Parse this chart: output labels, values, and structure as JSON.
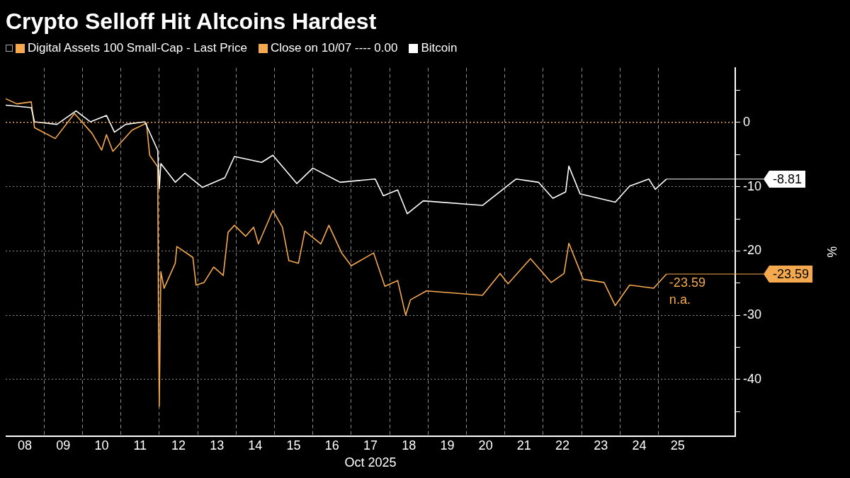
{
  "chart_data": {
    "type": "line",
    "title": "Crypto Selloff Hit Altcoins Hardest",
    "xlabel": "Oct 2025",
    "ylabel": "%",
    "xlim": [
      "2025-10-08",
      "2025-10-27"
    ],
    "xticks": [
      {
        "value": "2025-10-08T12:00",
        "label": "08"
      },
      {
        "value": "2025-10-09",
        "label": null
      },
      {
        "value": "2025-10-09T12:00",
        "label": "09"
      },
      {
        "value": "2025-10-10",
        "label": null
      },
      {
        "value": "2025-10-10T12:00",
        "label": "10"
      },
      {
        "value": "2025-10-11",
        "label": null
      },
      {
        "value": "2025-10-11T12:00",
        "label": "11"
      },
      {
        "value": "2025-10-12",
        "label": null
      },
      {
        "value": "2025-10-12T12:00",
        "label": "12"
      },
      {
        "value": "2025-10-13",
        "label": null
      },
      {
        "value": "2025-10-13T12:00",
        "label": "13"
      },
      {
        "value": "2025-10-14",
        "label": null
      },
      {
        "value": "2025-10-14T12:00",
        "label": "14"
      },
      {
        "value": "2025-10-15",
        "label": null
      },
      {
        "value": "2025-10-15T12:00",
        "label": "15"
      },
      {
        "value": "2025-10-16",
        "label": null
      },
      {
        "value": "2025-10-16T12:00",
        "label": "16"
      },
      {
        "value": "2025-10-17",
        "label": null
      },
      {
        "value": "2025-10-17T12:00",
        "label": "17"
      },
      {
        "value": "2025-10-18",
        "label": null
      },
      {
        "value": "2025-10-18T12:00",
        "label": "18"
      },
      {
        "value": "2025-10-19",
        "label": null
      },
      {
        "value": "2025-10-19T12:00",
        "label": "19"
      },
      {
        "value": "2025-10-20",
        "label": null
      },
      {
        "value": "2025-10-20T12:00",
        "label": "20"
      },
      {
        "value": "2025-10-21",
        "label": null
      },
      {
        "value": "2025-10-21T12:00",
        "label": "21"
      },
      {
        "value": "2025-10-22",
        "label": null
      },
      {
        "value": "2025-10-22T12:00",
        "label": "22"
      },
      {
        "value": "2025-10-23",
        "label": null
      },
      {
        "value": "2025-10-23T12:00",
        "label": "23"
      },
      {
        "value": "2025-10-24",
        "label": null
      },
      {
        "value": "2025-10-24T12:00",
        "label": "24"
      },
      {
        "value": "2025-10-25",
        "label": null
      },
      {
        "value": "2025-10-25T12:00",
        "label": "25"
      }
    ],
    "ylim": [
      -48.8,
      8.5
    ],
    "yticks": [
      {
        "value": 5,
        "label": null
      },
      0,
      {
        "value": -5,
        "label": null
      },
      -10,
      {
        "value": -15,
        "label": null
      },
      -20,
      {
        "value": -25,
        "label": null
      },
      -30,
      {
        "value": -35,
        "label": null
      },
      -40,
      {
        "value": -45,
        "label": null
      }
    ],
    "grid": true,
    "legend": "top left",
    "marker": "none",
    "line_style": "solid",
    "ref_lines": [
      {
        "axis": "y",
        "value": 0,
        "label": "Close on 10/07 ---- 0.00",
        "color": "#f5a94e",
        "line_style": "dotted"
      }
    ],
    "annotations": [
      {
        "text": "-8.81",
        "x": "2025-10-25T05:00",
        "y": -8.81
      },
      {
        "text": "-23.59",
        "x": "2025-10-25T05:00",
        "y": -23.59
      },
      "n.a."
    ],
    "series": [
      {
        "name": "Digital Assets 100 Small-Cap - Last Price",
        "color": "#f5a94e",
        "x": [
          "2025-10-08T00:00",
          "2025-10-08T07:00",
          "2025-10-08T16:00",
          "2025-10-08T18:00",
          "2025-10-09T07:00",
          "2025-10-09T19:00",
          "2025-10-10T06:00",
          "2025-10-10T12:00",
          "2025-10-10T15:00",
          "2025-10-10T19:00",
          "2025-10-11T07:00",
          "2025-10-11T16:00",
          "2025-10-11T18:00",
          "2025-10-11T23:00",
          "2025-10-11T23:30",
          "2025-10-12T00:00",
          "2025-10-12T01:00",
          "2025-10-12T03:00",
          "2025-10-12T10:00",
          "2025-10-12T11:00",
          "2025-10-12T21:00",
          "2025-10-12T23:00",
          "2025-10-13T04:00",
          "2025-10-13T10:00",
          "2025-10-13T16:00",
          "2025-10-13T19:00",
          "2025-10-13T23:00",
          "2025-10-14T06:00",
          "2025-10-14T11:00",
          "2025-10-14T14:00",
          "2025-10-14T23:00",
          "2025-10-15T05:00",
          "2025-10-15T09:00",
          "2025-10-15T15:00",
          "2025-10-15T19:00",
          "2025-10-16T05:00",
          "2025-10-16T10:00",
          "2025-10-16T18:00",
          "2025-10-17T00:00",
          "2025-10-17T14:00",
          "2025-10-17T21:00",
          "2025-10-18T05:00",
          "2025-10-18T10:00",
          "2025-10-18T13:00",
          "2025-10-18T23:00",
          "2025-10-20T10:00",
          "2025-10-20T21:00",
          "2025-10-21T02:00",
          "2025-10-21T16:00",
          "2025-10-22T05:00",
          "2025-10-22T13:00",
          "2025-10-22T16:00",
          "2025-10-23T01:00",
          "2025-10-23T14:00",
          "2025-10-23T21:00",
          "2025-10-24T06:00",
          "2025-10-24T21:00",
          "2025-10-25T05:00"
        ],
        "values": [
          3.7,
          2.9,
          3.2,
          -0.8,
          -2.5,
          1.4,
          -1.7,
          -4.3,
          -1.9,
          -4.5,
          -1.2,
          -0.1,
          -5.1,
          -6.9,
          -29.6,
          -44.2,
          -23.2,
          -25.8,
          -21.9,
          -19.3,
          -21.0,
          -25.3,
          -24.9,
          -22.5,
          -23.8,
          -17.1,
          -16.0,
          -17.7,
          -16.3,
          -18.9,
          -13.7,
          -16.3,
          -21.5,
          -21.9,
          -16.9,
          -18.9,
          -16.0,
          -20.3,
          -22.3,
          -20.3,
          -25.5,
          -24.6,
          -30.0,
          -27.6,
          -26.2,
          -26.9,
          -23.5,
          -25.1,
          -21.2,
          -24.9,
          -23.5,
          -18.8,
          -24.4,
          -24.9,
          -28.5,
          -25.3,
          -25.8,
          -23.59
        ],
        "value_labels": [
          null,
          null,
          null,
          null,
          null,
          null,
          null,
          null,
          null,
          null,
          null,
          null,
          null,
          null,
          null,
          null,
          null,
          null,
          null,
          null,
          null,
          null,
          null,
          null,
          null,
          null,
          null,
          null,
          null,
          null,
          null,
          null,
          null,
          null,
          null,
          null,
          null,
          null,
          null,
          null,
          null,
          null,
          null,
          null,
          null,
          null,
          null,
          null,
          null,
          null,
          null,
          null,
          null,
          null,
          null,
          null,
          null,
          "-23.59"
        ]
      },
      {
        "name": "Bitcoin",
        "color": "#ffffff",
        "x": [
          "2025-10-08T00:00",
          "2025-10-08T16:00",
          "2025-10-08T18:00",
          "2025-10-09T08:00",
          "2025-10-09T20:00",
          "2025-10-10T05:00",
          "2025-10-10T15:00",
          "2025-10-10T20:00",
          "2025-10-11T03:00",
          "2025-10-11T15:00",
          "2025-10-11T23:00",
          "2025-10-12T00:00",
          "2025-10-12T01:00",
          "2025-10-12T10:00",
          "2025-10-12T16:00",
          "2025-10-13T03:00",
          "2025-10-13T17:00",
          "2025-10-13T23:00",
          "2025-10-14T16:00",
          "2025-10-14T23:00",
          "2025-10-15T14:00",
          "2025-10-16T00:00",
          "2025-10-16T17:00",
          "2025-10-17T15:00",
          "2025-10-17T20:00",
          "2025-10-18T05:00",
          "2025-10-18T11:00",
          "2025-10-18T21:00",
          "2025-10-20T10:00",
          "2025-10-21T07:00",
          "2025-10-21T21:00",
          "2025-10-22T06:00",
          "2025-10-22T14:00",
          "2025-10-22T16:00",
          "2025-10-22T23:00",
          "2025-10-23T21:00",
          "2025-10-24T06:00",
          "2025-10-24T18:00",
          "2025-10-24T22:00",
          "2025-10-25T05:00"
        ],
        "values": [
          2.7,
          2.3,
          0.1,
          -0.3,
          1.8,
          0.1,
          1.1,
          -1.5,
          -0.3,
          0.1,
          -4.3,
          -10.3,
          -6.4,
          -9.3,
          -7.9,
          -10.1,
          -8.6,
          -5.3,
          -6.2,
          -5.1,
          -9.5,
          -7.1,
          -9.3,
          -8.8,
          -11.4,
          -10.5,
          -14.2,
          -12.2,
          -12.9,
          -8.8,
          -9.3,
          -11.8,
          -10.8,
          -6.8,
          -11.1,
          -12.4,
          -9.9,
          -8.8,
          -10.4,
          -8.81
        ],
        "value_labels": [
          null,
          null,
          null,
          null,
          null,
          null,
          null,
          null,
          null,
          null,
          null,
          null,
          null,
          null,
          null,
          null,
          null,
          null,
          null,
          null,
          null,
          null,
          null,
          null,
          null,
          null,
          null,
          null,
          null,
          null,
          null,
          null,
          null,
          null,
          null,
          null,
          null,
          null,
          null,
          null
        ]
      }
    ]
  }
}
